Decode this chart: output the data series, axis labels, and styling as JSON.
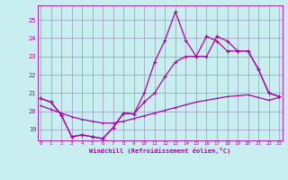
{
  "xlabel": "Windchill (Refroidissement éolien,°C)",
  "bg_color": "#c8eef0",
  "grid_color": "#9999bb",
  "line_color": "#aa00aa",
  "x_ticks": [
    0,
    1,
    2,
    3,
    4,
    5,
    6,
    7,
    8,
    9,
    10,
    11,
    12,
    13,
    14,
    15,
    16,
    17,
    18,
    19,
    20,
    21,
    22,
    23
  ],
  "y_ticks": [
    19,
    20,
    21,
    22,
    23,
    24,
    25
  ],
  "ylim": [
    18.4,
    25.8
  ],
  "xlim": [
    -0.3,
    23.3
  ],
  "line1": [
    20.7,
    20.5,
    19.8,
    18.6,
    18.7,
    18.6,
    18.5,
    19.1,
    19.9,
    19.85,
    21.0,
    22.7,
    23.9,
    25.45,
    23.9,
    23.0,
    23.0,
    24.1,
    23.85,
    23.3,
    23.3,
    22.3,
    21.0,
    20.8
  ],
  "line2": [
    20.7,
    20.5,
    19.8,
    18.6,
    18.7,
    18.6,
    18.5,
    19.1,
    19.9,
    19.85,
    20.5,
    21.0,
    21.9,
    22.7,
    23.0,
    23.0,
    24.1,
    23.85,
    23.3,
    23.3,
    23.3,
    22.3,
    21.0,
    20.8
  ],
  "line3": [
    20.3,
    20.1,
    19.9,
    19.7,
    19.55,
    19.45,
    19.35,
    19.35,
    19.45,
    19.6,
    19.75,
    19.9,
    20.05,
    20.2,
    20.35,
    20.5,
    20.6,
    20.7,
    20.8,
    20.85,
    20.9,
    20.75,
    20.6,
    20.75
  ]
}
